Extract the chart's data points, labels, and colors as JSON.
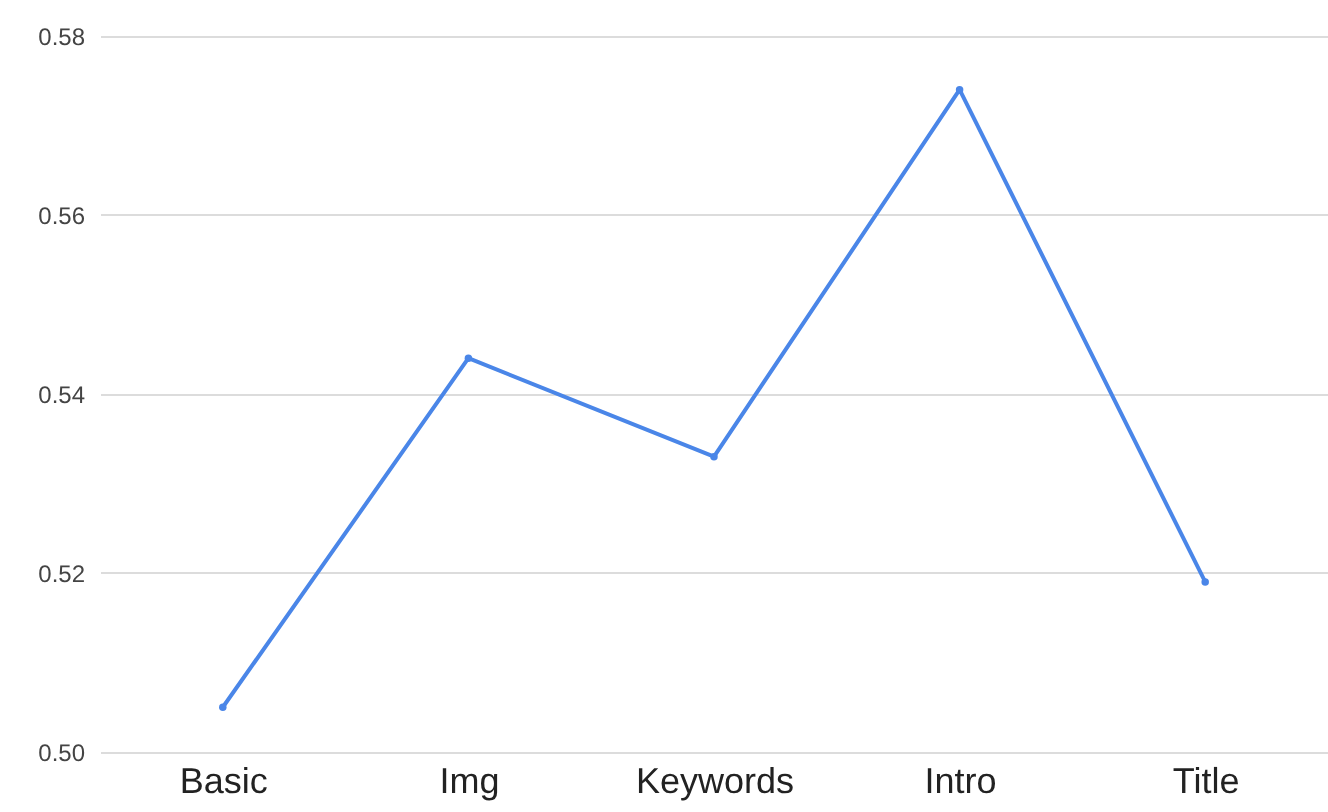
{
  "chart_data": {
    "type": "line",
    "categories": [
      "Basic",
      "Img",
      "Keywords",
      "Intro",
      "Title"
    ],
    "series": [
      {
        "color": "#4a86e8",
        "values": [
          0.505,
          0.544,
          0.533,
          0.574,
          0.519
        ]
      }
    ],
    "ylim": [
      0.5,
      0.58
    ],
    "yticks": [
      {
        "value": 0.5,
        "label": "0.50"
      },
      {
        "value": 0.52,
        "label": "0.52"
      },
      {
        "value": 0.54,
        "label": "0.54"
      },
      {
        "value": 0.56,
        "label": "0.56"
      },
      {
        "value": 0.58,
        "label": "0.58"
      }
    ],
    "grid": true,
    "marker": "circle",
    "line_style": "solid"
  }
}
